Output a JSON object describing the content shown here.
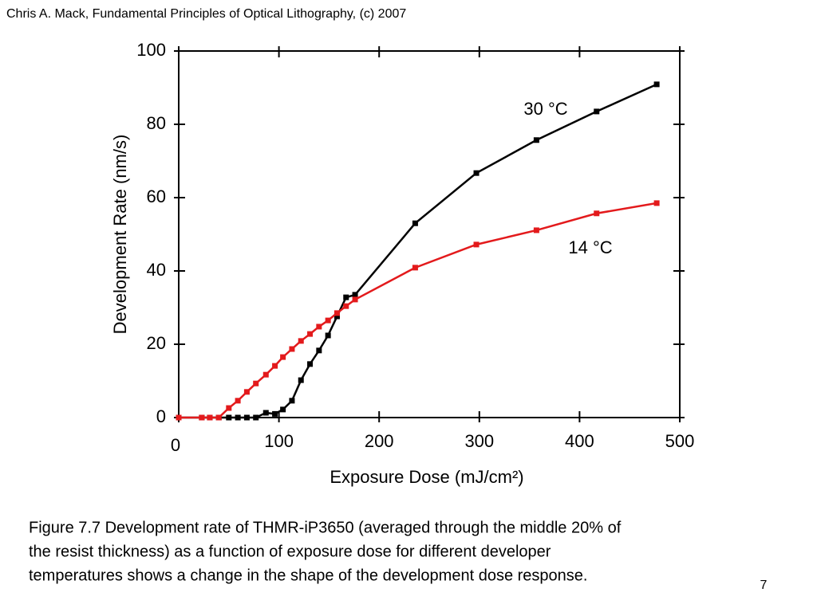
{
  "header": "Chris A. Mack, Fundamental Principles of Optical Lithography, (c) 2007",
  "caption": [
    "Figure 7.7  Development rate of THMR-iP3650 (averaged through the middle 20% of",
    "the resist thickness) as a function of exposure dose for different developer",
    "temperatures shows a change in the shape of the development dose response."
  ],
  "page_number": "7",
  "chart_data": {
    "type": "line",
    "xlabel": "Exposure Dose (mJ/cm²)",
    "ylabel": "Development Rate (nm/s)",
    "x": [
      0,
      23,
      31,
      40,
      50,
      59,
      68,
      77,
      87,
      96,
      104,
      113,
      122,
      131,
      140,
      149,
      158,
      167,
      176,
      236,
      297,
      357,
      417,
      477
    ],
    "series": [
      {
        "name": "30 °C",
        "color": "#000000",
        "values": [
          0,
          0,
          0,
          0,
          0,
          0,
          0,
          0,
          1.3,
          1,
          2.2,
          4.6,
          10.2,
          14.6,
          18.3,
          22.4,
          27.6,
          32.8,
          33.5,
          53,
          66.7,
          75.7,
          83.5,
          90.9
        ]
      },
      {
        "name": "14 °C",
        "color": "#e31a1c",
        "values": [
          0,
          0,
          0,
          0,
          2.6,
          4.6,
          7,
          9.3,
          11.7,
          14.1,
          16.5,
          18.7,
          20.9,
          22.8,
          24.8,
          26.5,
          28.5,
          30.4,
          32.2,
          40.9,
          47.2,
          51.1,
          55.7,
          58.5
        ]
      }
    ],
    "xlim": [
      0,
      500
    ],
    "xticks": [
      0,
      100,
      200,
      300,
      400,
      500
    ],
    "ylim": [
      0,
      100
    ],
    "yticks": [
      0,
      20,
      40,
      60,
      80,
      100
    ]
  }
}
